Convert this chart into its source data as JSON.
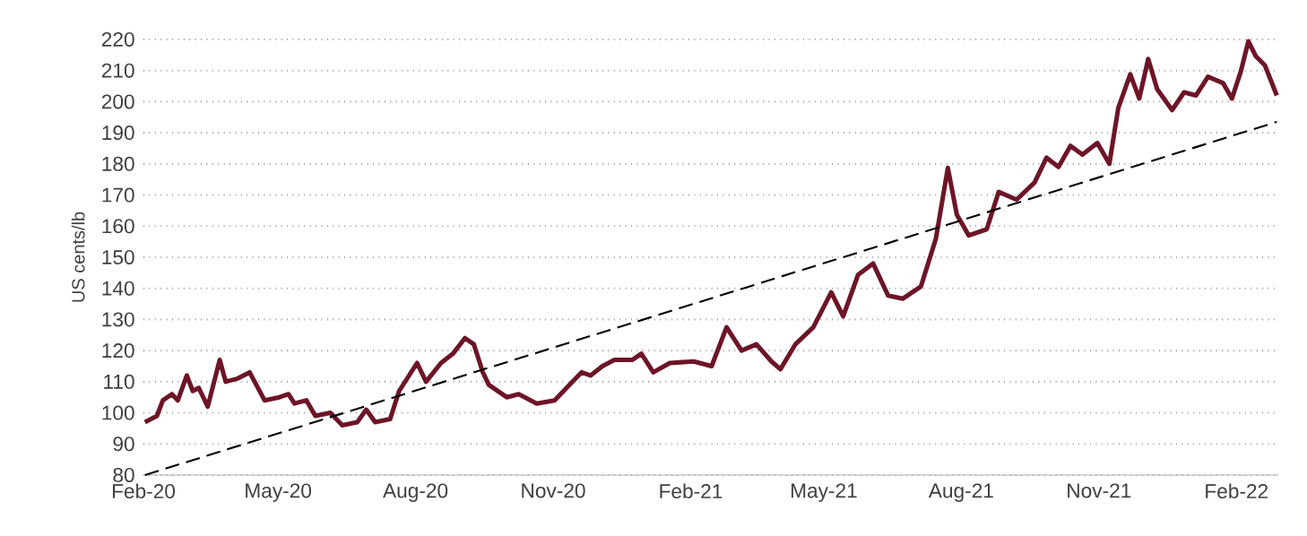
{
  "chart_data": {
    "type": "line",
    "ylabel": "US cents/lb",
    "xlim": [
      "2020-02-01",
      "2022-03-01"
    ],
    "ylim": [
      80,
      220
    ],
    "xticks": [
      {
        "value": "2020-02-01",
        "label": "Feb-20"
      },
      {
        "value": "2020-05-01",
        "label": "May-20"
      },
      {
        "value": "2020-08-01",
        "label": "Aug-20"
      },
      {
        "value": "2020-11-01",
        "label": "Nov-20"
      },
      {
        "value": "2021-02-01",
        "label": "Feb-21"
      },
      {
        "value": "2021-05-01",
        "label": "May-21"
      },
      {
        "value": "2021-08-01",
        "label": "Aug-21"
      },
      {
        "value": "2021-11-01",
        "label": "Nov-21"
      },
      {
        "value": "2022-02-01",
        "label": "Feb-22"
      }
    ],
    "yticks": [
      80,
      90,
      100,
      110,
      120,
      130,
      140,
      150,
      160,
      170,
      180,
      190,
      200,
      210,
      220
    ],
    "grid": "y",
    "series": [
      {
        "color": "#6d1527",
        "line_style": "solid",
        "x": [
          "2020-02-02",
          "2020-02-10",
          "2020-02-14",
          "2020-02-20",
          "2020-02-24",
          "2020-03-01",
          "2020-03-05",
          "2020-03-09",
          "2020-03-15",
          "2020-03-23",
          "2020-03-27",
          "2020-04-04",
          "2020-04-12",
          "2020-04-22",
          "2020-05-02",
          "2020-05-08",
          "2020-05-12",
          "2020-05-20",
          "2020-05-26",
          "2020-06-05",
          "2020-06-13",
          "2020-06-23",
          "2020-06-29",
          "2020-07-05",
          "2020-07-15",
          "2020-07-21",
          "2020-08-02",
          "2020-08-08",
          "2020-08-18",
          "2020-08-26",
          "2020-09-03",
          "2020-09-09",
          "2020-09-15",
          "2020-09-19",
          "2020-10-01",
          "2020-10-09",
          "2020-10-21",
          "2020-11-02",
          "2020-11-14",
          "2020-11-20",
          "2020-11-26",
          "2020-12-04",
          "2020-12-12",
          "2020-12-24",
          "2020-12-30",
          "2021-01-07",
          "2021-01-18",
          "2021-02-03",
          "2021-02-15",
          "2021-02-25",
          "2021-03-07",
          "2021-03-17",
          "2021-03-27",
          "2021-04-02",
          "2021-04-12",
          "2021-04-24",
          "2021-05-06",
          "2021-05-14",
          "2021-05-24",
          "2021-06-03",
          "2021-06-13",
          "2021-06-23",
          "2021-07-05",
          "2021-07-15",
          "2021-07-23",
          "2021-07-29",
          "2021-08-06",
          "2021-08-18",
          "2021-08-26",
          "2021-09-07",
          "2021-09-19",
          "2021-09-27",
          "2021-10-05",
          "2021-10-13",
          "2021-10-21",
          "2021-10-31",
          "2021-11-08",
          "2021-11-14",
          "2021-11-22",
          "2021-11-28",
          "2021-12-04",
          "2021-12-10",
          "2021-12-20",
          "2021-12-28",
          "2022-01-05",
          "2022-01-13",
          "2022-01-23",
          "2022-01-29",
          "2022-02-04",
          "2022-02-09",
          "2022-02-14",
          "2022-02-20",
          "2022-02-28"
        ],
        "values": [
          97,
          99,
          104,
          106,
          104,
          112,
          107,
          108,
          102,
          117,
          110,
          111,
          113,
          104,
          105,
          106,
          103,
          104,
          99,
          100,
          96,
          97,
          101,
          97,
          98,
          107,
          116,
          110,
          116,
          119,
          124,
          122,
          113,
          109,
          105,
          106,
          103,
          104,
          110,
          113,
          112,
          115,
          117,
          117,
          119,
          113,
          116,
          116.5,
          115,
          127.5,
          120,
          122,
          116.5,
          114,
          122,
          127.5,
          138.7,
          131,
          144.4,
          148,
          137.7,
          136.7,
          140.6,
          156,
          178.7,
          163.7,
          157,
          159,
          171,
          168.5,
          174,
          182,
          179,
          185.8,
          183,
          186.7,
          180,
          198,
          208.8,
          201,
          213.7,
          204,
          197.3,
          203,
          202,
          208,
          206,
          201,
          209.8,
          219.4,
          214.6,
          211.7,
          202
        ]
      },
      {
        "type": "line",
        "color": "#000000",
        "line_style": "dashed",
        "x": [
          "2020-02-02",
          "2022-02-28"
        ],
        "values": [
          80,
          193.5
        ]
      }
    ]
  }
}
